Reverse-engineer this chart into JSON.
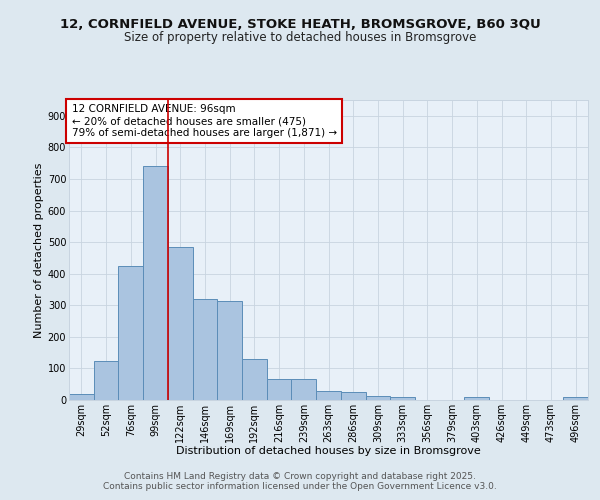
{
  "title_line1": "12, CORNFIELD AVENUE, STOKE HEATH, BROMSGROVE, B60 3QU",
  "title_line2": "Size of property relative to detached houses in Bromsgrove",
  "xlabel": "Distribution of detached houses by size in Bromsgrove",
  "ylabel": "Number of detached properties",
  "bar_labels": [
    "29sqm",
    "52sqm",
    "76sqm",
    "99sqm",
    "122sqm",
    "146sqm",
    "169sqm",
    "192sqm",
    "216sqm",
    "239sqm",
    "263sqm",
    "286sqm",
    "309sqm",
    "333sqm",
    "356sqm",
    "379sqm",
    "403sqm",
    "426sqm",
    "449sqm",
    "473sqm",
    "496sqm"
  ],
  "bar_values": [
    20,
    125,
    425,
    740,
    485,
    320,
    315,
    130,
    65,
    65,
    28,
    25,
    12,
    8,
    0,
    0,
    10,
    0,
    0,
    0,
    8
  ],
  "bar_color": "#aac4e0",
  "bar_edge_color": "#5b8db8",
  "vline_color": "#cc0000",
  "vline_pos": 3.5,
  "annotation_text": "12 CORNFIELD AVENUE: 96sqm\n← 20% of detached houses are smaller (475)\n79% of semi-detached houses are larger (1,871) →",
  "annotation_box_color": "white",
  "annotation_box_edge_color": "#cc0000",
  "ylim": [
    0,
    950
  ],
  "yticks": [
    0,
    100,
    200,
    300,
    400,
    500,
    600,
    700,
    800,
    900
  ],
  "background_color": "#dde8f0",
  "plot_bg_color": "#e8f0f8",
  "grid_color": "#c8d4e0",
  "footer_line1": "Contains HM Land Registry data © Crown copyright and database right 2025.",
  "footer_line2": "Contains public sector information licensed under the Open Government Licence v3.0.",
  "title_fontsize": 9.5,
  "subtitle_fontsize": 8.5,
  "axis_label_fontsize": 8,
  "tick_label_fontsize": 7,
  "annotation_fontsize": 7.5,
  "footer_fontsize": 6.5
}
